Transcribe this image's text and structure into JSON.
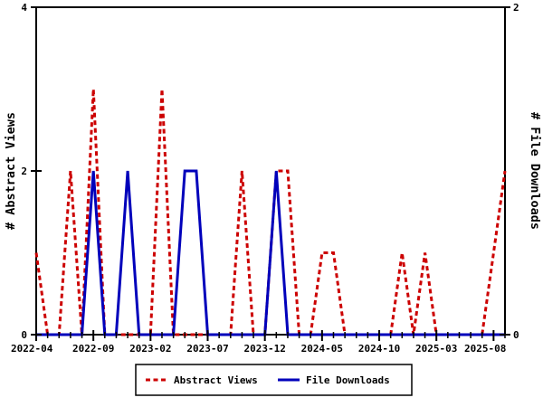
{
  "chart_data": {
    "type": "line",
    "title": "",
    "x_categories": [
      "2022-04",
      "2022-05",
      "2022-06",
      "2022-07",
      "2022-08",
      "2022-09",
      "2022-10",
      "2022-11",
      "2022-12",
      "2023-01",
      "2023-02",
      "2023-03",
      "2023-04",
      "2023-05",
      "2023-06",
      "2023-07",
      "2023-08",
      "2023-09",
      "2023-10",
      "2023-11",
      "2023-12",
      "2024-01",
      "2024-02",
      "2024-03",
      "2024-04",
      "2024-05",
      "2024-06",
      "2024-07",
      "2024-08",
      "2024-09",
      "2024-10",
      "2024-11",
      "2024-12",
      "2025-01",
      "2025-02",
      "2025-03",
      "2025-04",
      "2025-05",
      "2025-06",
      "2025-07",
      "2025-08",
      "2025-09"
    ],
    "x_tick_labels": [
      "2022-04",
      "2022-09",
      "2023-02",
      "2023-07",
      "2023-12",
      "2024-05",
      "2024-10",
      "2025-03",
      "2025-08"
    ],
    "x_tick_every": 5,
    "series": [
      {
        "name": "Abstract Views",
        "axis": "left",
        "color": "#cc0000",
        "style": "dashed",
        "values": [
          1,
          0,
          0,
          2,
          0,
          3,
          0,
          0,
          0,
          0,
          0,
          3,
          0,
          0,
          0,
          0,
          0,
          0,
          2,
          0,
          0,
          2,
          2,
          0,
          0,
          1,
          1,
          0,
          0,
          0,
          0,
          0,
          1,
          0,
          1,
          0,
          0,
          0,
          0,
          0,
          1,
          2
        ]
      },
      {
        "name": "File Downloads",
        "axis": "right",
        "color": "#0000bb",
        "style": "solid",
        "values": [
          0,
          0,
          0,
          0,
          0,
          1,
          0,
          0,
          1,
          0,
          0,
          0,
          0,
          1,
          1,
          0,
          0,
          0,
          0,
          0,
          0,
          1,
          0,
          0,
          0,
          0,
          0,
          0,
          0,
          0,
          0,
          0,
          0,
          0,
          0,
          0,
          0,
          0,
          0,
          0,
          0,
          0
        ]
      }
    ],
    "left_axis": {
      "label": "# Abstract Views",
      "min": 0,
      "max": 4,
      "ticks": [
        0,
        2,
        4
      ]
    },
    "right_axis": {
      "label": "# File Downloads",
      "min": 0,
      "max": 2,
      "ticks": [
        0,
        2
      ]
    },
    "legend": {
      "position": "bottom-center",
      "items": [
        "Abstract Views",
        "File Downloads"
      ]
    },
    "grid": false,
    "axis_color": "#000000",
    "background": "#ffffff"
  }
}
